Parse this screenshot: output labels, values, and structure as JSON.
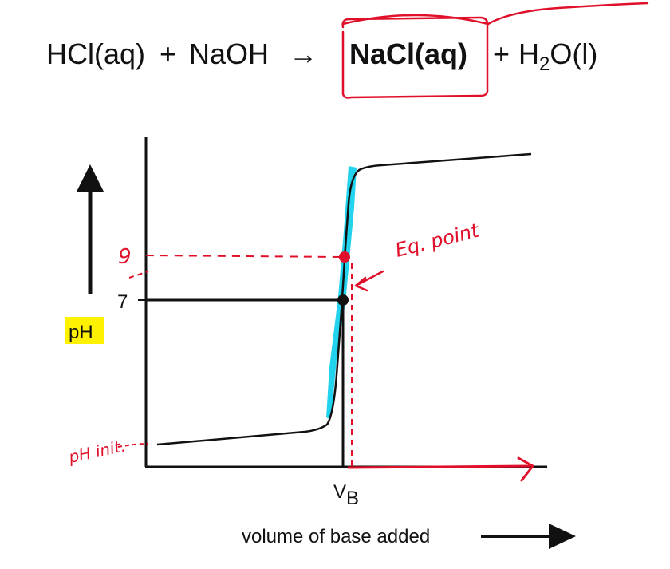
{
  "equation": {
    "reactant_1": "HCl(aq)",
    "plus_1": "+",
    "reactant_2": "NaOH",
    "arrow": "→",
    "product_1": "NaCl(aq)",
    "plus_2": "+",
    "product_2_prefix": "H",
    "product_2_subscript": "2",
    "product_2_suffix": "O(l)"
  },
  "graph": {
    "y_axis_label": "pH",
    "x_axis_label": "volume of base added",
    "y_tick_label": "7",
    "x_tick_label_main": "V",
    "x_tick_label_sub": "B"
  },
  "annotations": {
    "eq_point_label": "Eq. point",
    "ph_nine_label": "9",
    "ph_init_label": "pH init."
  },
  "colors": {
    "ink": "#111111",
    "annotation": "#e0102a",
    "highlight_cyan": "#22d3ee",
    "highlight_yellow": "#fff200"
  }
}
